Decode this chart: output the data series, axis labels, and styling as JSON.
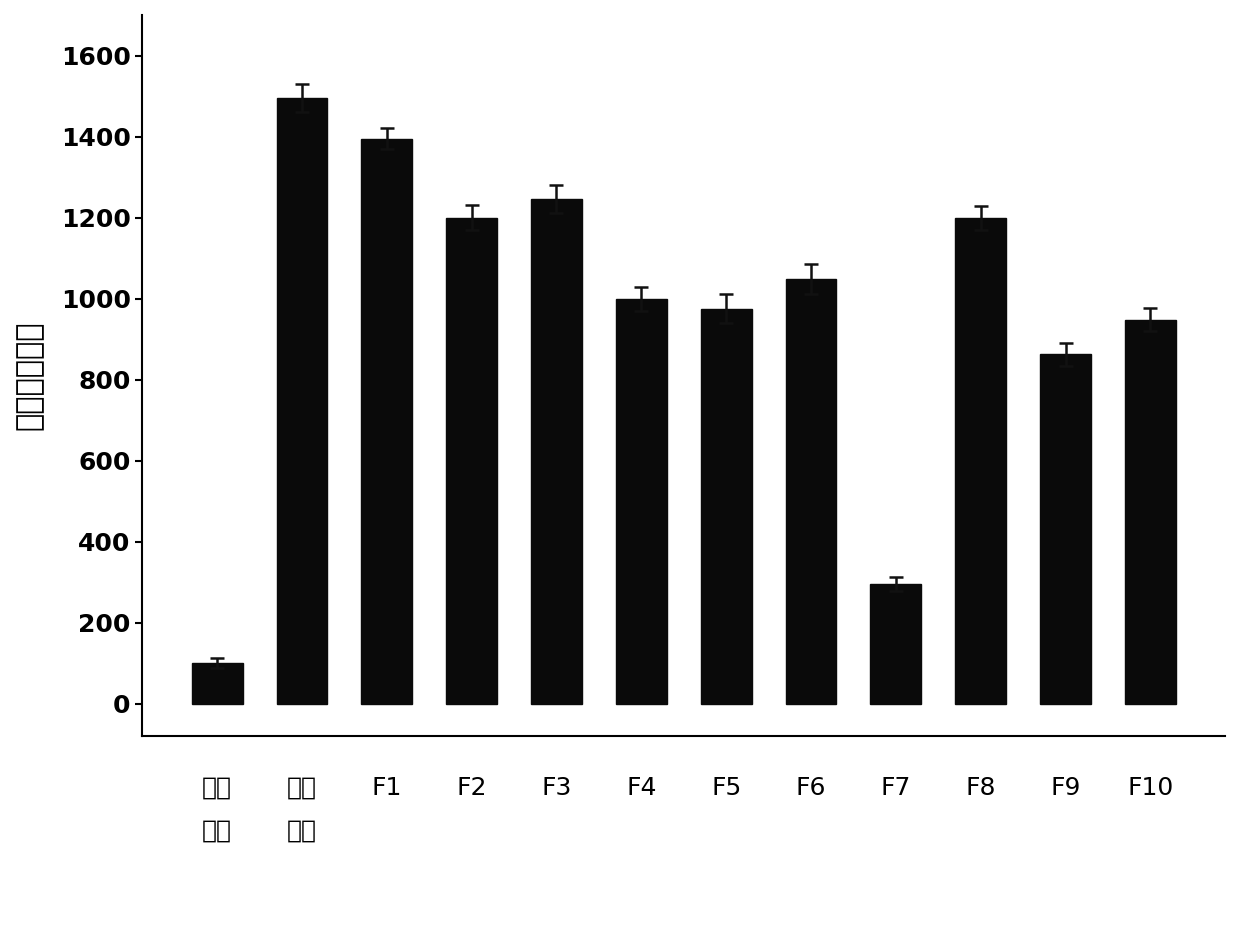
{
  "categories_line1": [
    "空白",
    "阳性",
    "F1",
    "F2",
    "F3",
    "F4",
    "F5",
    "F6",
    "F7",
    "F8",
    "F9",
    "F10"
  ],
  "categories_line2": [
    "对照",
    "对照",
    "",
    "",
    "",
    "",
    "",
    "",
    "",
    "",
    "",
    ""
  ],
  "values": [
    100,
    1495,
    1395,
    1200,
    1245,
    998,
    975,
    1048,
    295,
    1198,
    862,
    948
  ],
  "errors": [
    12,
    35,
    25,
    30,
    35,
    30,
    35,
    38,
    18,
    30,
    28,
    28
  ],
  "bar_color": "#0a0a0a",
  "ylabel": "荼光素酥活性",
  "ylim": [
    -80,
    1700
  ],
  "yticks": [
    0,
    200,
    400,
    600,
    800,
    1000,
    1200,
    1400,
    1600
  ],
  "ylabel_fontsize": 22,
  "tick_fontsize": 18,
  "xlabel_fontsize": 18,
  "background_color": "#ffffff",
  "bar_width": 0.6
}
